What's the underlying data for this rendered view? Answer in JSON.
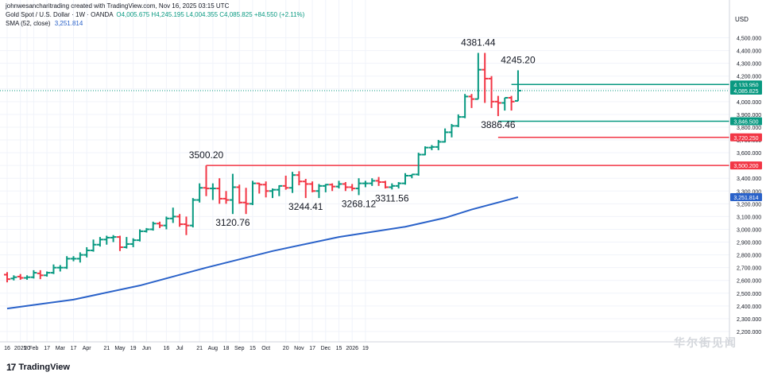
{
  "header": {
    "line1": "johnwesancharitrading created with TradingView.com, Nov 16, 2025 03:15 UTC",
    "symbol": "Gold Spot / U.S. Dollar · 1W · OANDA",
    "ohlc": "O4,005.675 H4,245.195 L4,004.355 C4,085.825 +84.550 (+2.11%)",
    "sma_label": "SMA (52, close)",
    "sma_value": "3,251.814"
  },
  "currency_label": "USD",
  "brand": {
    "logo": "17",
    "name": "TradingView"
  },
  "watermark": "华尔街见闻",
  "colors": {
    "up": "#089981",
    "down": "#f23645",
    "sma": "#2a62c9",
    "grid": "#f0f3fa",
    "axis_text": "#131722",
    "current_price": "#089981"
  },
  "chart_data": {
    "type": "ohlc",
    "title": "Gold Spot / U.S. Dollar · 1W · OANDA",
    "xlabel": "",
    "ylabel": "",
    "ylim": [
      2200,
      4600
    ],
    "grid": true,
    "y_ticks": [
      "2,200.000",
      "2,300.000",
      "2,400.000",
      "2,500.000",
      "2,600.000",
      "2,700.000",
      "2,800.000",
      "2,900.000",
      "3,000.000",
      "3,100.000",
      "3,200.000",
      "3,300.000",
      "3,400.000",
      "3,500.000",
      "3,600.000",
      "3,700.000",
      "3,800.000",
      "3,900.000",
      "4,000.000",
      "4,100.000",
      "4,200.000",
      "4,300.000",
      "4,400.000",
      "4,500.000"
    ],
    "x_ticks": [
      {
        "label": "16",
        "index": 0
      },
      {
        "label": "2025",
        "index": 2
      },
      {
        "label": "20",
        "index": 3
      },
      {
        "label": "Feb",
        "index": 4
      },
      {
        "label": "17",
        "index": 6
      },
      {
        "label": "Mar",
        "index": 8
      },
      {
        "label": "17",
        "index": 10
      },
      {
        "label": "Apr",
        "index": 12
      },
      {
        "label": "21",
        "index": 15
      },
      {
        "label": "May",
        "index": 17
      },
      {
        "label": "19",
        "index": 19
      },
      {
        "label": "Jun",
        "index": 21
      },
      {
        "label": "16",
        "index": 24
      },
      {
        "label": "Jul",
        "index": 26
      },
      {
        "label": "21",
        "index": 29
      },
      {
        "label": "Aug",
        "index": 31
      },
      {
        "label": "18",
        "index": 33
      },
      {
        "label": "Sep",
        "index": 35
      },
      {
        "label": "15",
        "index": 37
      },
      {
        "label": "Oct",
        "index": 39
      },
      {
        "label": "20",
        "index": 42
      },
      {
        "label": "Nov",
        "index": 44
      },
      {
        "label": "17",
        "index": 46
      },
      {
        "label": "Dec",
        "index": 48
      },
      {
        "label": "15",
        "index": 50
      },
      {
        "label": "2026",
        "index": 52
      },
      {
        "label": "19",
        "index": 54
      }
    ],
    "ohlc": [
      {
        "o": 2645,
        "h": 2665,
        "l": 2585,
        "c": 2610
      },
      {
        "o": 2615,
        "h": 2640,
        "l": 2600,
        "c": 2625
      },
      {
        "o": 2630,
        "h": 2650,
        "l": 2605,
        "c": 2620
      },
      {
        "o": 2620,
        "h": 2640,
        "l": 2605,
        "c": 2625
      },
      {
        "o": 2625,
        "h": 2680,
        "l": 2615,
        "c": 2660
      },
      {
        "o": 2655,
        "h": 2680,
        "l": 2610,
        "c": 2640
      },
      {
        "o": 2640,
        "h": 2670,
        "l": 2630,
        "c": 2660
      },
      {
        "o": 2660,
        "h": 2725,
        "l": 2650,
        "c": 2700
      },
      {
        "o": 2700,
        "h": 2720,
        "l": 2670,
        "c": 2700
      },
      {
        "o": 2700,
        "h": 2790,
        "l": 2690,
        "c": 2770
      },
      {
        "o": 2770,
        "h": 2790,
        "l": 2750,
        "c": 2770
      },
      {
        "o": 2770,
        "h": 2820,
        "l": 2740,
        "c": 2800
      },
      {
        "o": 2800,
        "h": 2860,
        "l": 2780,
        "c": 2835
      },
      {
        "o": 2835,
        "h": 2920,
        "l": 2825,
        "c": 2880
      },
      {
        "o": 2880,
        "h": 2940,
        "l": 2865,
        "c": 2920
      },
      {
        "o": 2920,
        "h": 2950,
        "l": 2880,
        "c": 2935
      },
      {
        "o": 2935,
        "h": 2955,
        "l": 2900,
        "c": 2940
      },
      {
        "o": 2940,
        "h": 2950,
        "l": 2830,
        "c": 2860
      },
      {
        "o": 2860,
        "h": 2940,
        "l": 2850,
        "c": 2885
      },
      {
        "o": 2885,
        "h": 2930,
        "l": 2860,
        "c": 2915
      },
      {
        "o": 2915,
        "h": 3000,
        "l": 2905,
        "c": 2985
      },
      {
        "o": 2985,
        "h": 3010,
        "l": 2975,
        "c": 3000
      },
      {
        "o": 3000,
        "h": 3060,
        "l": 2990,
        "c": 3045
      },
      {
        "o": 3045,
        "h": 3060,
        "l": 3010,
        "c": 3030
      },
      {
        "o": 3030,
        "h": 3100,
        "l": 3000,
        "c": 3085
      },
      {
        "o": 3085,
        "h": 3170,
        "l": 3050,
        "c": 3100
      },
      {
        "o": 3100,
        "h": 3120,
        "l": 3020,
        "c": 3040
      },
      {
        "o": 3040,
        "h": 3100,
        "l": 2955,
        "c": 3030
      },
      {
        "o": 3030,
        "h": 3245,
        "l": 3015,
        "c": 3230
      },
      {
        "o": 3230,
        "h": 3360,
        "l": 3210,
        "c": 3325
      },
      {
        "o": 3325,
        "h": 3500,
        "l": 3260,
        "c": 3320
      },
      {
        "o": 3320,
        "h": 3360,
        "l": 3230,
        "c": 3320
      },
      {
        "o": 3320,
        "h": 3400,
        "l": 3200,
        "c": 3240
      },
      {
        "o": 3240,
        "h": 3300,
        "l": 3200,
        "c": 3230
      },
      {
        "o": 3230,
        "h": 3435,
        "l": 3120,
        "c": 3330
      },
      {
        "o": 3330,
        "h": 3350,
        "l": 3200,
        "c": 3210
      },
      {
        "o": 3210,
        "h": 3325,
        "l": 3120,
        "c": 3200
      },
      {
        "o": 3200,
        "h": 3380,
        "l": 3190,
        "c": 3360
      },
      {
        "o": 3360,
        "h": 3365,
        "l": 3280,
        "c": 3350
      },
      {
        "o": 3350,
        "h": 3375,
        "l": 3250,
        "c": 3300
      },
      {
        "o": 3300,
        "h": 3320,
        "l": 3245,
        "c": 3310
      },
      {
        "o": 3310,
        "h": 3345,
        "l": 3260,
        "c": 3340
      },
      {
        "o": 3340,
        "h": 3420,
        "l": 3310,
        "c": 3325
      },
      {
        "o": 3325,
        "h": 3450,
        "l": 3285,
        "c": 3425
      },
      {
        "o": 3425,
        "h": 3455,
        "l": 3345,
        "c": 3375
      },
      {
        "o": 3375,
        "h": 3395,
        "l": 3245,
        "c": 3355
      },
      {
        "o": 3355,
        "h": 3375,
        "l": 3290,
        "c": 3300
      },
      {
        "o": 3300,
        "h": 3355,
        "l": 3245,
        "c": 3340
      },
      {
        "o": 3340,
        "h": 3355,
        "l": 3290,
        "c": 3350
      },
      {
        "o": 3350,
        "h": 3360,
        "l": 3300,
        "c": 3335
      },
      {
        "o": 3335,
        "h": 3380,
        "l": 3320,
        "c": 3355
      },
      {
        "o": 3355,
        "h": 3370,
        "l": 3300,
        "c": 3330
      },
      {
        "o": 3330,
        "h": 3355,
        "l": 3300,
        "c": 3320
      },
      {
        "o": 3320,
        "h": 3400,
        "l": 3268,
        "c": 3360
      },
      {
        "o": 3360,
        "h": 3380,
        "l": 3330,
        "c": 3360
      },
      {
        "o": 3360,
        "h": 3400,
        "l": 3340,
        "c": 3380
      },
      {
        "o": 3380,
        "h": 3410,
        "l": 3340,
        "c": 3370
      },
      {
        "o": 3370,
        "h": 3380,
        "l": 3320,
        "c": 3330
      },
      {
        "o": 3330,
        "h": 3360,
        "l": 3312,
        "c": 3340
      },
      {
        "o": 3340,
        "h": 3370,
        "l": 3320,
        "c": 3360
      },
      {
        "o": 3360,
        "h": 3440,
        "l": 3350,
        "c": 3420
      },
      {
        "o": 3420,
        "h": 3430,
        "l": 3400,
        "c": 3430
      },
      {
        "o": 3430,
        "h": 3600,
        "l": 3420,
        "c": 3585
      },
      {
        "o": 3585,
        "h": 3650,
        "l": 3580,
        "c": 3640
      },
      {
        "o": 3640,
        "h": 3660,
        "l": 3620,
        "c": 3645
      },
      {
        "o": 3645,
        "h": 3700,
        "l": 3620,
        "c": 3685
      },
      {
        "o": 3685,
        "h": 3790,
        "l": 3680,
        "c": 3760
      },
      {
        "o": 3760,
        "h": 3825,
        "l": 3720,
        "c": 3810
      },
      {
        "o": 3810,
        "h": 3900,
        "l": 3800,
        "c": 3880
      },
      {
        "o": 3880,
        "h": 4060,
        "l": 3870,
        "c": 4040
      },
      {
        "o": 4040,
        "h": 4060,
        "l": 3950,
        "c": 4020
      },
      {
        "o": 4020,
        "h": 4381.44,
        "l": 4020,
        "c": 4250
      },
      {
        "o": 4250,
        "h": 4381.44,
        "l": 3990,
        "c": 4180
      },
      {
        "o": 4180,
        "h": 4200,
        "l": 3950,
        "c": 4000
      },
      {
        "o": 4000,
        "h": 4045,
        "l": 3886.46,
        "c": 3990
      },
      {
        "o": 3990,
        "h": 4030,
        "l": 3930,
        "c": 4030
      },
      {
        "o": 4030,
        "h": 4045,
        "l": 3930,
        "c": 4000
      },
      {
        "o": 4005.675,
        "h": 4245.195,
        "l": 4004.355,
        "c": 4085.825
      }
    ],
    "sma": {
      "name": "SMA (52, close)",
      "start_index": 0,
      "end_index": 77,
      "points": [
        {
          "i": 0,
          "v": 2380
        },
        {
          "i": 10,
          "v": 2450
        },
        {
          "i": 20,
          "v": 2560
        },
        {
          "i": 30,
          "v": 2700
        },
        {
          "i": 40,
          "v": 2830
        },
        {
          "i": 50,
          "v": 2940
        },
        {
          "i": 60,
          "v": 3020
        },
        {
          "i": 66,
          "v": 3090
        },
        {
          "i": 70,
          "v": 3155
        },
        {
          "i": 77,
          "v": 3252
        }
      ]
    },
    "annotations": [
      {
        "text": "4381.44",
        "index": 71,
        "value": 4381.44,
        "position": "above"
      },
      {
        "text": "4245.20",
        "index": 77,
        "value": 4245.195,
        "position": "above"
      },
      {
        "text": "3886.46",
        "index": 74,
        "value": 3886.46,
        "position": "below"
      },
      {
        "text": "3500.20",
        "index": 30,
        "value": 3500.2,
        "position": "above"
      },
      {
        "text": "3120.76",
        "index": 34,
        "value": 3120.76,
        "position": "below"
      },
      {
        "text": "3244.41",
        "index": 45,
        "value": 3244.41,
        "position": "below"
      },
      {
        "text": "3268.12",
        "index": 53,
        "value": 3268.12,
        "position": "below"
      },
      {
        "text": "3311.56",
        "index": 58,
        "value": 3311.56,
        "position": "below"
      }
    ],
    "horizontal_lines": [
      {
        "value": 4133.95,
        "label": "4,133.950",
        "color": "#089981",
        "from_index": 76
      },
      {
        "value": 3846.5,
        "label": "3,846.500",
        "color": "#089981",
        "from_index": 74
      },
      {
        "value": 3720.25,
        "label": "3,720.250",
        "color": "#f23645",
        "from_index": 74
      },
      {
        "value": 3500.2,
        "label": "3,500.200",
        "color": "#f23645",
        "from_index": 30
      }
    ],
    "price_labels": [
      {
        "value": 4085.825,
        "label": "4,085.825",
        "color": "#089981"
      },
      {
        "value": 3251.814,
        "label": "3,251.814",
        "color": "#2a62c9"
      }
    ]
  }
}
